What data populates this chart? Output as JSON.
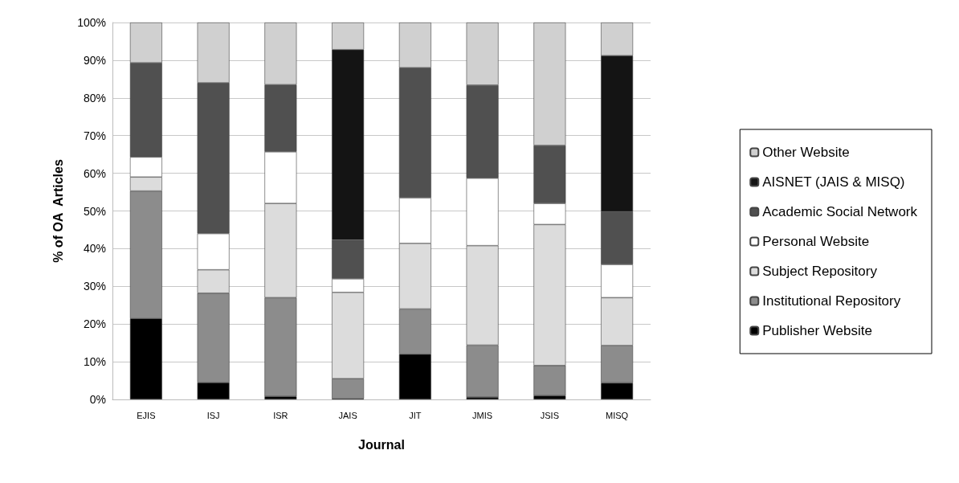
{
  "chart_data": {
    "type": "bar",
    "stacked": true,
    "xlabel": "Journal",
    "ylabel": "% of OA  Articles",
    "categories": [
      "EJIS",
      "ISJ",
      "ISR",
      "JAIS",
      "JIT",
      "JMIS",
      "JSIS",
      "MISQ"
    ],
    "series": [
      {
        "name": "Publisher Website",
        "color": "#000000",
        "values": [
          21.5,
          4.5,
          0.8,
          0.2,
          12,
          0.6,
          1,
          4.4
        ]
      },
      {
        "name": "Institutional Repository",
        "color": "#8c8c8c",
        "values": [
          33.8,
          23.7,
          26.2,
          5.3,
          12,
          13.8,
          8,
          9.9
        ]
      },
      {
        "name": "Subject Repository",
        "color": "#dcdcdc",
        "values": [
          3.7,
          6.2,
          25,
          22.9,
          17.4,
          26.4,
          37.4,
          12.7
        ]
      },
      {
        "name": "Personal Website",
        "color": "#ffffff",
        "values": [
          5.3,
          9.6,
          13.7,
          3.6,
          12.1,
          17.9,
          5.6,
          8.8
        ]
      },
      {
        "name": "Academic Social Network",
        "color": "#505050",
        "values": [
          25,
          40,
          17.8,
          10.3,
          34.5,
          24.7,
          15.4,
          14
        ]
      },
      {
        "name": "AISNET (JAIS & MISQ)",
        "color": "#141414",
        "values": [
          null,
          null,
          null,
          50.5,
          null,
          null,
          null,
          41.4
        ]
      },
      {
        "name": "Other Website",
        "color": "#d0d0d0",
        "values": [
          10.7,
          16,
          16.5,
          7.2,
          12,
          16.6,
          32.6,
          8.8
        ]
      }
    ],
    "ylim": [
      0,
      100
    ],
    "yticks": [
      {
        "value": 0,
        "label": "0%"
      },
      {
        "value": 10,
        "label": "10%"
      },
      {
        "value": 20,
        "label": "20%"
      },
      {
        "value": 30,
        "label": "30%"
      },
      {
        "value": 40,
        "label": "40%"
      },
      {
        "value": 50,
        "label": "50%"
      },
      {
        "value": 60,
        "label": "60%"
      },
      {
        "value": 70,
        "label": "70%"
      },
      {
        "value": 80,
        "label": "80%"
      },
      {
        "value": 90,
        "label": "90%"
      },
      {
        "value": 100,
        "label": "100%"
      }
    ],
    "grid": "y",
    "legend": "right"
  }
}
